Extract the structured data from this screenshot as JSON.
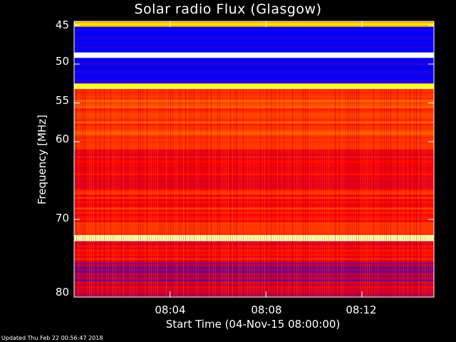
{
  "chart_data": {
    "type": "heatmap",
    "title": "Solar radio Flux (Glasgow)",
    "ylabel": "Frequency [MHz]",
    "xlabel": "Start Time (04-Nov-15 08:00:00)",
    "yticks": [
      "45",
      "50",
      "55",
      "60",
      "70",
      "80"
    ],
    "ytick_values": [
      45,
      50,
      55,
      60,
      70,
      80
    ],
    "xticks": [
      "08:04",
      "08:08",
      "08:12"
    ],
    "xtick_values_min": [
      4,
      8,
      12
    ],
    "ylim": [
      80,
      44.5
    ],
    "xlim_min": [
      0,
      15
    ],
    "colormap": [
      "#000000",
      "#0000ff",
      "#ff0000",
      "#ffff00",
      "#ffffff"
    ],
    "bands": [
      {
        "f0": 44.5,
        "f1": 45.2,
        "level": 0.7
      },
      {
        "f0": 45.2,
        "f1": 48.5,
        "level": 0.25
      },
      {
        "f0": 48.5,
        "f1": 49.2,
        "level": 1.0
      },
      {
        "f0": 49.2,
        "f1": 52.5,
        "level": 0.25
      },
      {
        "f0": 52.5,
        "f1": 53.2,
        "level": 0.8
      },
      {
        "f0": 53.2,
        "f1": 61.0,
        "level": 0.56
      },
      {
        "f0": 61.0,
        "f1": 66.0,
        "level": 0.48
      },
      {
        "f0": 66.0,
        "f1": 72.0,
        "level": 0.52
      },
      {
        "f0": 72.0,
        "f1": 72.8,
        "level": 0.95
      },
      {
        "f0": 72.8,
        "f1": 75.5,
        "level": 0.5
      },
      {
        "f0": 75.5,
        "f1": 78.0,
        "level": 0.4
      },
      {
        "f0": 78.0,
        "f1": 80.0,
        "level": 0.45
      }
    ]
  },
  "footer": {
    "updated": "Updated Thu Feb 22 00:56:47 2018"
  }
}
